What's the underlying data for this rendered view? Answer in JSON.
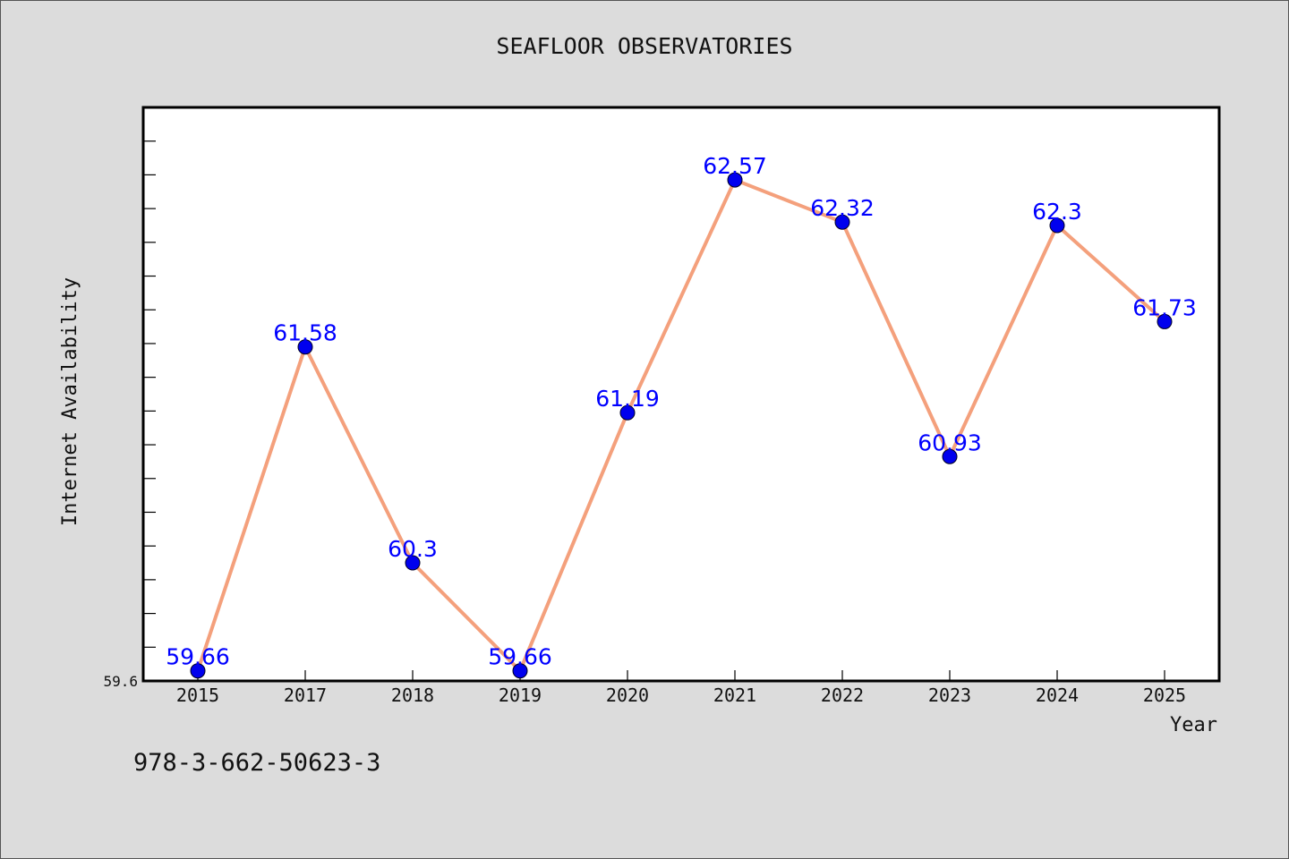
{
  "chart_data": {
    "type": "line",
    "title": "SEAFLOOR OBSERVATORIES",
    "xlabel": "Year",
    "ylabel": "Internet Availability",
    "categories": [
      "2015",
      "2017",
      "2018",
      "2019",
      "2020",
      "2021",
      "2022",
      "2023",
      "2024",
      "2025"
    ],
    "series": [
      {
        "values": [
          59.66,
          61.58,
          60.3,
          59.66,
          61.19,
          62.57,
          62.32,
          60.93,
          62.3,
          61.73
        ],
        "data_labels": [
          "59.66",
          "61.58",
          "60.3",
          "59.66",
          "61.19",
          "62.57",
          "62.32",
          "60.93",
          "62.3",
          "61.73"
        ]
      }
    ],
    "ylim": [
      59.6,
      63.0
    ],
    "y_tick_label": "59.6",
    "line_color": "#f4a07c",
    "marker_color": "#0000ee",
    "label_color": "#0000ff",
    "plot_background": "#ffffff",
    "grid": false,
    "legend": "none"
  },
  "footer": {
    "code": "978-3-662-50623-3"
  }
}
